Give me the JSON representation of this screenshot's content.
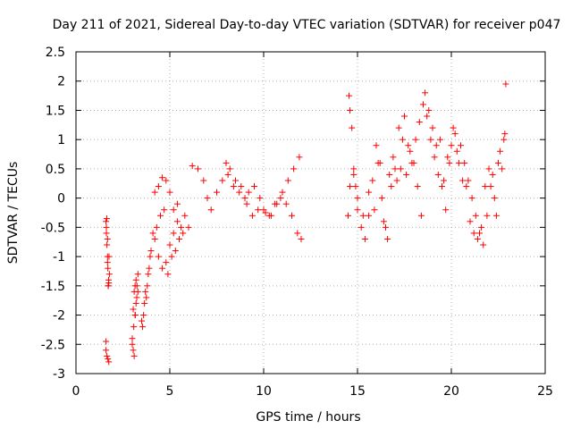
{
  "chart_data": {
    "type": "scatter",
    "title": "Day 211 of 2021, Sidereal Day-to-day VTEC variation (SDTVAR) for receiver p047",
    "xlabel": "GPS time / hours",
    "ylabel": "SDTVAR / TECUs",
    "xlim": [
      0,
      25
    ],
    "ylim": [
      -3,
      2.5
    ],
    "grid": true,
    "marker": "plus",
    "color": "#ff0000",
    "x_ticks": [
      0,
      5,
      10,
      15,
      20,
      25
    ],
    "x_tick_labels": [
      "0",
      "5",
      "10",
      "15",
      "20",
      "25"
    ],
    "y_ticks": [
      -3,
      -2.5,
      -2,
      -1.5,
      -1,
      -0.5,
      0,
      0.5,
      1,
      1.5,
      2,
      2.5
    ],
    "y_tick_labels": [
      "-3",
      "-2.5",
      "-2",
      "-1.5",
      "-1",
      "-0.5",
      "0",
      "0.5",
      "1",
      "1.5",
      "2",
      "2.5"
    ],
    "series": [
      {
        "name": "SDTVAR",
        "x": [
          1.6,
          1.62,
          1.65,
          1.68,
          1.7,
          1.72,
          1.75,
          1.78,
          1.6,
          1.65,
          1.7,
          1.75,
          1.62,
          1.68,
          1.74,
          1.6,
          1.64,
          1.68,
          1.72,
          1.76,
          3.0,
          3.05,
          3.1,
          3.15,
          3.2,
          3.05,
          3.1,
          3.15,
          3.2,
          3.25,
          3.3,
          3.0,
          3.08,
          3.16,
          3.24,
          3.3,
          3.5,
          3.55,
          3.6,
          3.65,
          3.7,
          3.75,
          3.8,
          3.85,
          3.9,
          3.95,
          4.0,
          4.2,
          4.4,
          4.6,
          4.8,
          5.0,
          5.2,
          5.4,
          5.6,
          5.8,
          6.0,
          4.1,
          4.3,
          4.5,
          4.7,
          4.9,
          5.1,
          5.3,
          5.5,
          5.7,
          4.2,
          4.4,
          4.6,
          4.8,
          5.0,
          5.2,
          5.4,
          6.2,
          6.5,
          6.8,
          7.0,
          7.2,
          7.5,
          7.8,
          8.0,
          8.2,
          8.5,
          8.8,
          9.0,
          9.2,
          9.5,
          9.8,
          10.0,
          10.3,
          10.6,
          10.9,
          11.2,
          11.5,
          11.8,
          12.0,
          8.1,
          8.4,
          8.7,
          9.1,
          9.4,
          9.7,
          10.1,
          10.4,
          10.7,
          11.0,
          11.3,
          11.6,
          11.9,
          14.5,
          14.55,
          14.6,
          14.7,
          14.8,
          14.9,
          15.0,
          15.2,
          15.4,
          15.6,
          15.8,
          16.0,
          16.2,
          16.4,
          16.6,
          16.8,
          17.0,
          17.2,
          17.4,
          17.6,
          17.8,
          18.0,
          18.2,
          18.4,
          18.5,
          18.6,
          18.8,
          19.0,
          19.2,
          19.4,
          19.6,
          19.8,
          20.0,
          20.2,
          20.4,
          20.6,
          20.8,
          21.0,
          21.2,
          21.4,
          21.6,
          21.8,
          22.0,
          22.2,
          22.4,
          22.6,
          22.8,
          22.9,
          14.6,
          14.8,
          15.0,
          15.3,
          15.6,
          15.9,
          16.1,
          16.3,
          16.5,
          16.7,
          16.9,
          17.1,
          17.3,
          17.5,
          17.7,
          17.9,
          18.1,
          18.3,
          18.7,
          18.9,
          19.1,
          19.3,
          19.5,
          19.7,
          19.9,
          20.1,
          20.3,
          20.5,
          20.7,
          20.9,
          21.1,
          21.3,
          21.5,
          21.7,
          21.9,
          22.1,
          22.3,
          22.5,
          22.7,
          22.85
        ],
        "y": [
          -0.4,
          -0.6,
          -0.8,
          -1.0,
          -1.2,
          -1.5,
          -1.45,
          -1.3,
          -2.45,
          -2.7,
          -2.75,
          -2.8,
          -0.5,
          -0.7,
          -1.4,
          -2.6,
          -0.35,
          -1.1,
          -1.5,
          -1.0,
          -2.5,
          -2.6,
          -2.7,
          -2.0,
          -1.8,
          -1.9,
          -1.6,
          -1.5,
          -1.4,
          -1.5,
          -1.6,
          -2.4,
          -2.2,
          -2.0,
          -1.7,
          -1.3,
          -2.1,
          -2.2,
          -2.0,
          -1.8,
          -1.6,
          -1.7,
          -1.5,
          -1.3,
          -1.2,
          -1.0,
          -0.9,
          -0.7,
          -1.0,
          -1.2,
          -1.1,
          -0.8,
          -0.6,
          -0.4,
          -0.5,
          -0.3,
          -0.5,
          -0.6,
          -0.5,
          -0.3,
          -0.2,
          -1.3,
          -1.0,
          -0.9,
          -0.7,
          -0.6,
          0.1,
          0.2,
          0.35,
          0.3,
          0.1,
          -0.2,
          -0.1,
          0.55,
          0.5,
          0.3,
          0.0,
          -0.2,
          0.1,
          0.3,
          0.6,
          0.5,
          0.3,
          0.2,
          0.0,
          0.1,
          0.2,
          0.0,
          -0.2,
          -0.3,
          -0.1,
          0.0,
          -0.1,
          -0.3,
          -0.6,
          -0.7,
          0.4,
          0.2,
          0.1,
          -0.1,
          -0.3,
          -0.2,
          -0.25,
          -0.3,
          -0.1,
          0.1,
          0.3,
          0.5,
          0.7,
          -0.3,
          1.75,
          1.5,
          1.2,
          0.5,
          0.2,
          -0.2,
          -0.5,
          -0.7,
          -0.3,
          0.3,
          0.9,
          0.6,
          -0.4,
          -0.7,
          0.2,
          0.5,
          1.2,
          1.0,
          0.4,
          0.8,
          0.6,
          0.2,
          -0.3,
          1.6,
          1.8,
          1.5,
          1.2,
          0.9,
          1.0,
          0.3,
          0.7,
          0.9,
          1.1,
          0.6,
          0.3,
          0.2,
          -0.4,
          -0.6,
          -0.7,
          -0.5,
          0.2,
          0.5,
          0.4,
          -0.3,
          0.8,
          1.0,
          1.95,
          0.2,
          0.4,
          0.0,
          -0.3,
          0.1,
          -0.2,
          0.6,
          0.0,
          -0.5,
          0.4,
          0.7,
          0.3,
          0.5,
          1.4,
          0.9,
          0.6,
          1.0,
          1.3,
          1.4,
          1.0,
          0.7,
          0.4,
          0.2,
          -0.2,
          0.6,
          1.2,
          0.8,
          0.9,
          0.6,
          0.3,
          0.0,
          -0.3,
          -0.6,
          -0.8,
          -0.3,
          0.2,
          0.0,
          0.6,
          0.5,
          1.1
        ]
      }
    ]
  }
}
